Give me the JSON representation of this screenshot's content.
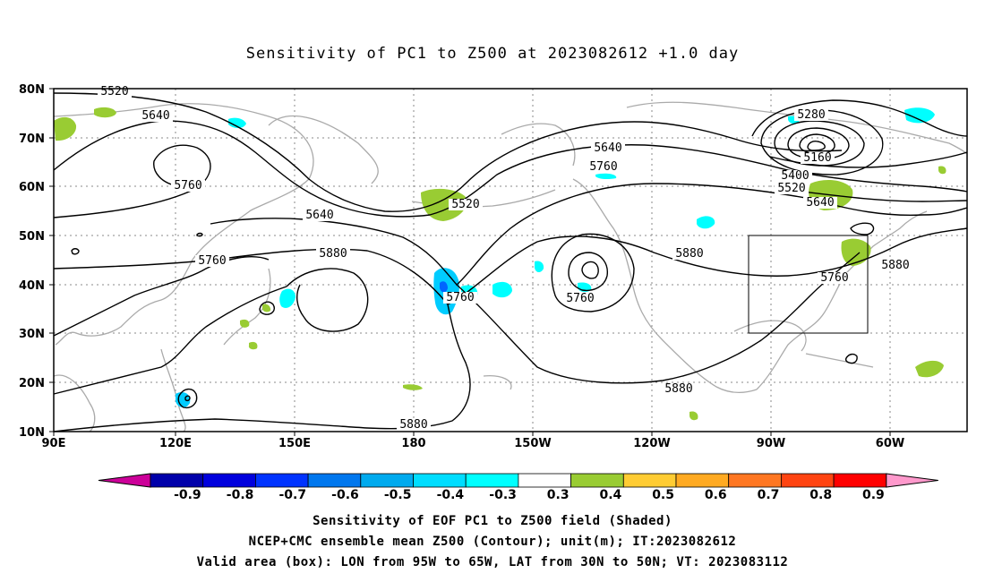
{
  "title": "Sensitivity of PC1 to Z500 at 2023082612 +1.0 day",
  "map": {
    "lat_labels": [
      "80N",
      "70N",
      "60N",
      "50N",
      "40N",
      "30N",
      "20N",
      "10N"
    ],
    "lon_labels": [
      "90E",
      "120E",
      "150E",
      "180",
      "150W",
      "120W",
      "90W",
      "60W"
    ],
    "contour_labels": [
      "5520",
      "5640",
      "5760",
      "5640",
      "5760",
      "5880",
      "5520",
      "5760",
      "5640",
      "5760",
      "5760",
      "5880",
      "5280",
      "5160",
      "5400",
      "5520",
      "5640",
      "5880",
      "5760",
      "5880",
      "5880"
    ],
    "box": {
      "lon_from": "95W",
      "lon_to": "65W",
      "lat_from": "30N",
      "lat_to": "50N"
    },
    "colors": {
      "contour": "#000000",
      "coast": "#aaaaaa",
      "grid": "#888888",
      "positive": "#99cc33",
      "cyan": "#00ffff",
      "light_blue": "#00ccff",
      "blue": "#0066ff"
    }
  },
  "colorbar": {
    "labels": [
      "-0.9",
      "-0.8",
      "-0.7",
      "-0.6",
      "-0.5",
      "-0.4",
      "-0.3",
      "0.3",
      "0.4",
      "0.5",
      "0.6",
      "0.7",
      "0.8",
      "0.9"
    ],
    "colors": [
      "#0000aa",
      "#0000dd",
      "#0033ff",
      "#0077ee",
      "#00aaee",
      "#00ddff",
      "#00ffff",
      "#ffffff",
      "#99cc33",
      "#ffcc33",
      "#ffaa22",
      "#ff7722",
      "#ff4411",
      "#ff0000"
    ],
    "left_end_color": "#cc0099",
    "right_end_color": "#ff99cc"
  },
  "captions": {
    "line1": "Sensitivity of EOF PC1 to Z500 field (Shaded)",
    "line2": "NCEP+CMC ensemble mean Z500 (Contour); unit(m); IT:2023082612",
    "line3": "Valid area (box): LON from 95W to 65W, LAT from 30N to 50N; VT: 2023083112"
  }
}
